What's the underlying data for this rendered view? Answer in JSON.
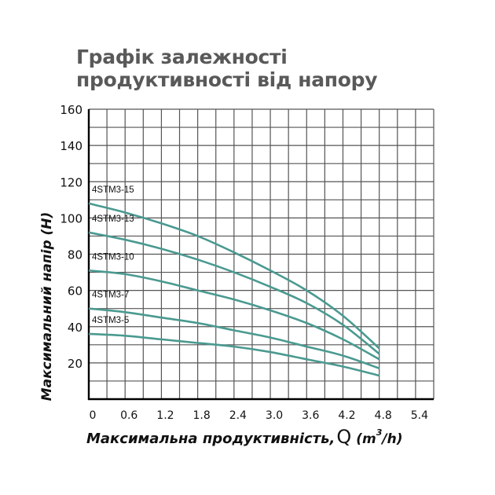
{
  "title": "Графік залежності продуктивності від напору",
  "chart_data": {
    "type": "line",
    "title": "Графік залежності продуктивності від напору",
    "xlabel": "Максимальна продуктивність, Q (m³/h)",
    "ylabel": "Максимальний напір (H)",
    "xlim": [
      0,
      5.7
    ],
    "ylim": [
      0,
      160
    ],
    "x_ticks": [
      "0",
      "0.6",
      "1.2",
      "1.8",
      "2.4",
      "3.0",
      "3.6",
      "4.2",
      "4.8",
      "5.4"
    ],
    "y_ticks": [
      "20",
      "40",
      "60",
      "80",
      "100",
      "120",
      "140",
      "160"
    ],
    "grid": true,
    "grid_x_step": 0.3,
    "grid_y_step": 10,
    "line_color": "#4a9a90",
    "series": [
      {
        "name": "4STM3-15",
        "x": [
          0,
          0.6,
          1.2,
          1.8,
          2.4,
          3.0,
          3.6,
          4.2,
          4.8
        ],
        "values": [
          108,
          103,
          97,
          90,
          81,
          71,
          60,
          46,
          28
        ]
      },
      {
        "name": "4STM3-13",
        "x": [
          0,
          0.6,
          1.2,
          1.8,
          2.4,
          3.0,
          3.6,
          4.2,
          4.8
        ],
        "values": [
          92,
          88,
          83,
          77,
          70,
          62,
          53,
          41,
          25
        ]
      },
      {
        "name": "4STM3-10",
        "x": [
          0,
          0.6,
          1.2,
          1.8,
          2.4,
          3.0,
          3.6,
          4.2,
          4.8
        ],
        "values": [
          71,
          69,
          65,
          60,
          55,
          49,
          42,
          33,
          22
        ]
      },
      {
        "name": "4STM3-7",
        "x": [
          0,
          0.6,
          1.2,
          1.8,
          2.4,
          3.0,
          3.6,
          4.2,
          4.8
        ],
        "values": [
          50,
          48,
          45,
          42,
          38,
          34,
          29,
          24,
          17
        ]
      },
      {
        "name": "4STM3-5",
        "x": [
          0,
          0.6,
          1.2,
          1.8,
          2.4,
          3.0,
          3.6,
          4.2,
          4.8
        ],
        "values": [
          36,
          35,
          33,
          31,
          29,
          26,
          22,
          18,
          13
        ]
      }
    ]
  },
  "axis": {
    "ylabel": "Максимальний напір (H)",
    "xlabel_main": "Максимальна продуктивність,",
    "xlabel_q": "Q",
    "xlabel_unit_pre": "(m",
    "xlabel_unit_sup": "3",
    "xlabel_unit_post": "/h)"
  }
}
